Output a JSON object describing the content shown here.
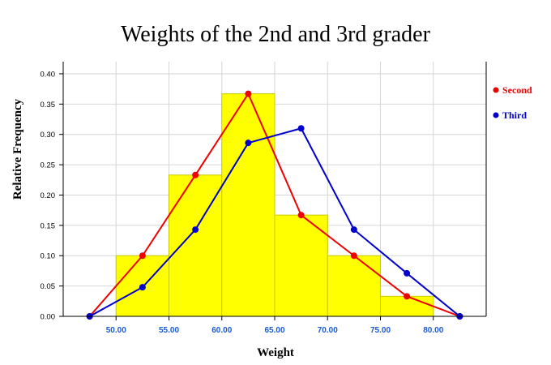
{
  "chart_data": {
    "type": "bar",
    "title": "Weights of the 2nd and 3rd grader",
    "xlabel": "Weight",
    "ylabel": "Relative Frequency",
    "xlim": [
      45,
      85
    ],
    "ylim": [
      0,
      0.42
    ],
    "x_ticks": [
      50,
      55,
      60,
      65,
      70,
      75,
      80
    ],
    "x_tick_labels": [
      "50.00",
      "55.00",
      "60.00",
      "65.00",
      "70.00",
      "75.00",
      "80.00"
    ],
    "y_ticks": [
      0,
      0.05,
      0.1,
      0.15,
      0.2,
      0.25,
      0.3,
      0.35,
      0.4
    ],
    "y_tick_labels": [
      "0.00",
      "0.05",
      "0.10",
      "0.15",
      "0.20",
      "0.25",
      "0.30",
      "0.35",
      "0.40"
    ],
    "grid": true,
    "histogram": {
      "bin_edges": [
        50,
        55,
        60,
        65,
        70,
        75,
        80
      ],
      "values": [
        0.1,
        0.233,
        0.367,
        0.167,
        0.1,
        0.033
      ],
      "fill": "#ffff00",
      "stroke": "#c8c800"
    },
    "series": [
      {
        "name": "Second",
        "color": "#ee0000",
        "x": [
          47.5,
          52.5,
          57.5,
          62.5,
          67.5,
          72.5,
          77.5,
          82.5
        ],
        "y": [
          0,
          0.1,
          0.233,
          0.367,
          0.167,
          0.1,
          0.033,
          0
        ]
      },
      {
        "name": "Third",
        "color": "#0000cc",
        "x": [
          47.5,
          52.5,
          57.5,
          62.5,
          67.5,
          72.5,
          77.5,
          82.5
        ],
        "y": [
          0,
          0.048,
          0.143,
          0.286,
          0.31,
          0.143,
          0.071,
          0
        ]
      }
    ],
    "legend_position": "right"
  }
}
